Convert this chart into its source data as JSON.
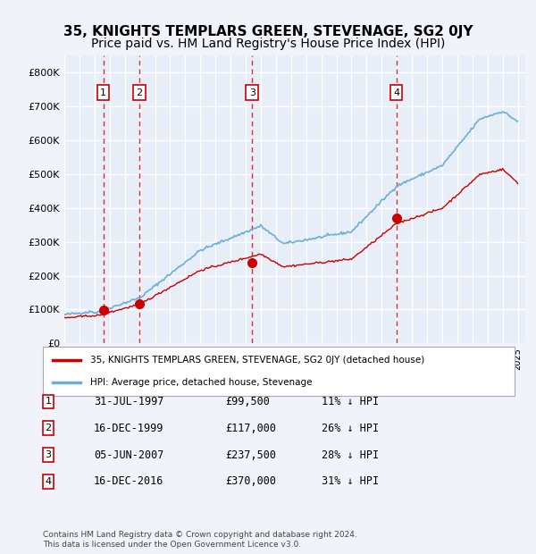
{
  "title": "35, KNIGHTS TEMPLARS GREEN, STEVENAGE, SG2 0JY",
  "subtitle": "Price paid vs. HM Land Registry's House Price Index (HPI)",
  "ylim": [
    0,
    850000
  ],
  "yticks": [
    0,
    100000,
    200000,
    300000,
    400000,
    500000,
    600000,
    700000,
    800000
  ],
  "ytick_labels": [
    "£0",
    "£100K",
    "£200K",
    "£300K",
    "£400K",
    "£500K",
    "£600K",
    "£700K",
    "£800K"
  ],
  "background_color": "#f0f4fa",
  "plot_bg_color": "#e8eef8",
  "grid_color": "#ffffff",
  "hpi_color": "#6baed6",
  "price_color": "#cc0000",
  "sale_marker_color": "#cc0000",
  "vline_color": "#cc0000",
  "legend_box_color": "#ffffff",
  "transactions": [
    {
      "index": 1,
      "date": "31-JUL-1997",
      "price": 99500,
      "year": 1997.58,
      "pct": "11%",
      "direction": "↓"
    },
    {
      "index": 2,
      "date": "16-DEC-1999",
      "price": 117000,
      "year": 1999.96,
      "pct": "26%",
      "direction": "↓"
    },
    {
      "index": 3,
      "date": "05-JUN-2007",
      "price": 237500,
      "year": 2007.43,
      "pct": "28%",
      "direction": "↓"
    },
    {
      "index": 4,
      "date": "16-DEC-2016",
      "price": 370000,
      "year": 2016.96,
      "pct": "31%",
      "direction": "↓"
    }
  ],
  "legend_entries": [
    "35, KNIGHTS TEMPLARS GREEN, STEVENAGE, SG2 0JY (detached house)",
    "HPI: Average price, detached house, Stevenage"
  ],
  "footer_text": "Contains HM Land Registry data © Crown copyright and database right 2024.\nThis data is licensed under the Open Government Licence v3.0.",
  "title_fontsize": 11,
  "subtitle_fontsize": 10,
  "tick_fontsize": 8,
  "annotation_fontsize": 8
}
